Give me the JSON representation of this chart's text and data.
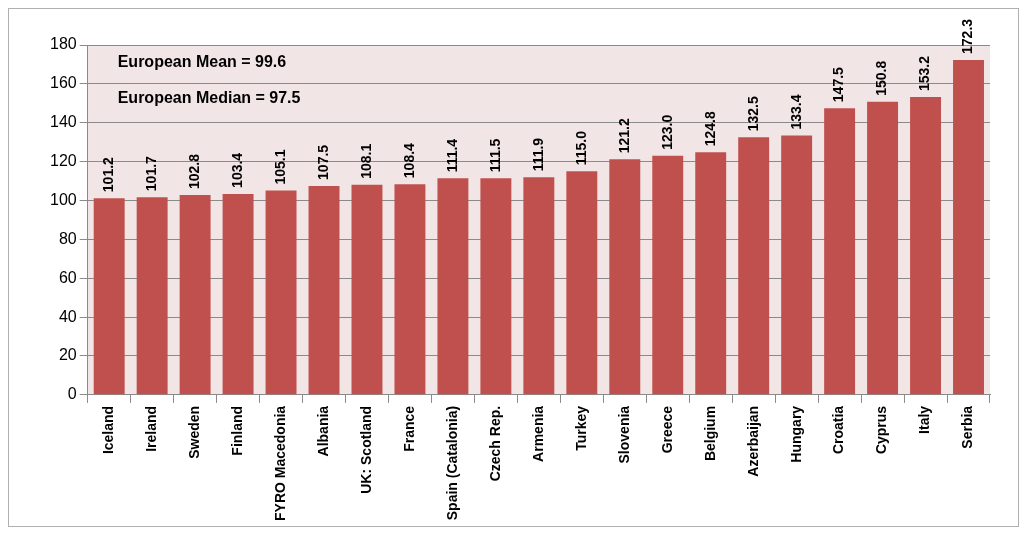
{
  "chart_data": {
    "type": "bar",
    "categories": [
      "Iceland",
      "Ireland",
      "Sweden",
      "Finland",
      "FYRO Macedonia",
      "Albania",
      "UK: Scotland",
      "France",
      "Spain (Catalonia)",
      "Czech Rep.",
      "Armenia",
      "Turkey",
      "Slovenia",
      "Greece",
      "Belgium",
      "Azerbaijan",
      "Hungary",
      "Croatia",
      "Cyprus",
      "Italy",
      "Serbia"
    ],
    "values": [
      101.2,
      101.7,
      102.8,
      103.4,
      105.1,
      107.5,
      108.1,
      108.4,
      111.4,
      111.5,
      111.9,
      115.0,
      121.2,
      123.0,
      124.8,
      132.5,
      133.4,
      147.5,
      150.8,
      153.2,
      172.3
    ],
    "value_labels": [
      "101.2",
      "101.7",
      "102.8",
      "103.4",
      "105.1",
      "107.5",
      "108.1",
      "108.4",
      "111.4",
      "111.5",
      "111.9",
      "115.0",
      "121.2",
      "123.0",
      "124.8",
      "132.5",
      "133.4",
      "147.5",
      "150.8",
      "153.2",
      "172.3"
    ],
    "color": "#c0504d",
    "ylim": [
      0,
      180
    ],
    "yticks": [
      0,
      20,
      40,
      60,
      80,
      100,
      120,
      140,
      160,
      180
    ],
    "grid": "y",
    "annotations": [
      "European Mean = 99.6",
      "European Median = 97.5"
    ]
  }
}
